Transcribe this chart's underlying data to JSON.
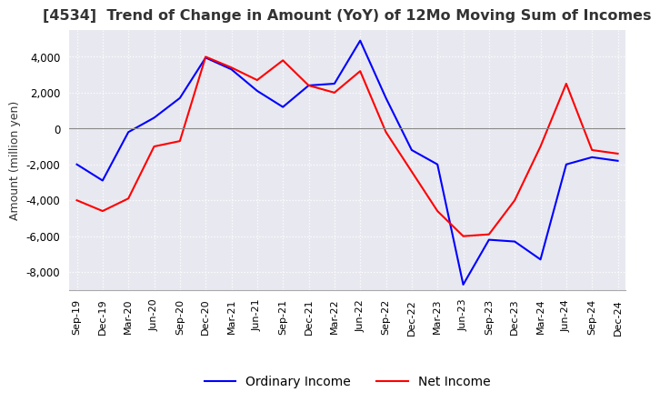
{
  "title": "[4534]  Trend of Change in Amount (YoY) of 12Mo Moving Sum of Incomes",
  "ylabel": "Amount (million yen)",
  "ylim": [
    -9000,
    5500
  ],
  "yticks": [
    -8000,
    -6000,
    -4000,
    -2000,
    0,
    2000,
    4000
  ],
  "background_color": "#ffffff",
  "plot_bg_color": "#e8e8f0",
  "grid_color": "#ffffff",
  "grid_style": "dotted",
  "ordinary_income_color": "#0000ff",
  "net_income_color": "#ff0000",
  "ordinary_income_label": "Ordinary Income",
  "net_income_label": "Net Income",
  "x_labels": [
    "Sep-19",
    "Dec-19",
    "Mar-20",
    "Jun-20",
    "Sep-20",
    "Dec-20",
    "Mar-21",
    "Jun-21",
    "Sep-21",
    "Dec-21",
    "Mar-22",
    "Jun-22",
    "Sep-22",
    "Dec-22",
    "Mar-23",
    "Jun-23",
    "Sep-23",
    "Dec-23",
    "Mar-24",
    "Jun-24",
    "Sep-24",
    "Dec-24"
  ],
  "ordinary_income": [
    -2000,
    -2900,
    -200,
    600,
    1700,
    3950,
    3300,
    2100,
    1200,
    2400,
    2500,
    4900,
    1700,
    -1200,
    -2000,
    -8700,
    -6200,
    -6300,
    -7300,
    -2000,
    -1600,
    -1800
  ],
  "net_income": [
    -4000,
    -4600,
    -3900,
    -1000,
    -700,
    4000,
    3400,
    2700,
    3800,
    2400,
    2000,
    3200,
    -200,
    -2400,
    -4600,
    -6000,
    -5900,
    -4000,
    -1000,
    2500,
    -1200,
    -1400
  ]
}
